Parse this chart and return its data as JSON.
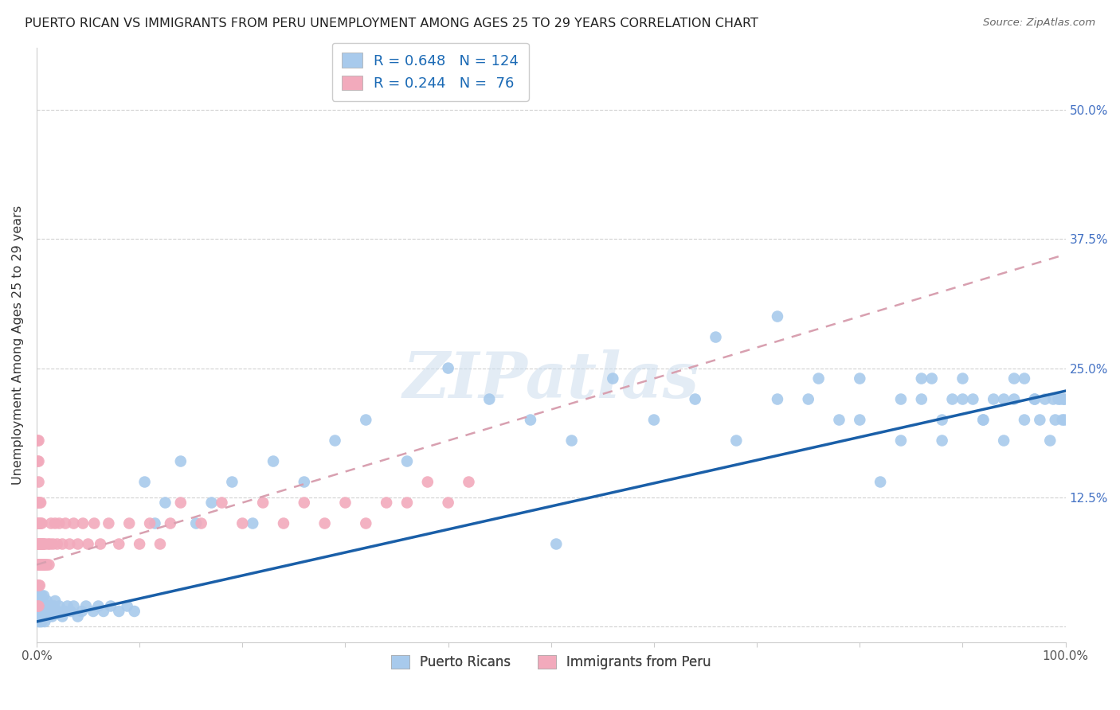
{
  "title": "PUERTO RICAN VS IMMIGRANTS FROM PERU UNEMPLOYMENT AMONG AGES 25 TO 29 YEARS CORRELATION CHART",
  "source": "Source: ZipAtlas.com",
  "ylabel": "Unemployment Among Ages 25 to 29 years",
  "watermark": "ZIPatlas",
  "blue_R": 0.648,
  "blue_N": 124,
  "pink_R": 0.244,
  "pink_N": 76,
  "blue_label": "Puerto Ricans",
  "pink_label": "Immigrants from Peru",
  "blue_color": "#A8CAEC",
  "pink_color": "#F2AABC",
  "blue_line_color": "#1A5FA8",
  "pink_line_color": "#D8A0B0",
  "xlim": [
    0.0,
    1.0
  ],
  "ylim": [
    -0.015,
    0.56
  ],
  "yticks": [
    0.0,
    0.125,
    0.25,
    0.375,
    0.5
  ],
  "yticklabels_right": [
    "",
    "12.5%",
    "25.0%",
    "37.5%",
    "50.0%"
  ],
  "blue_x": [
    0.001,
    0.001,
    0.001,
    0.001,
    0.002,
    0.002,
    0.002,
    0.002,
    0.002,
    0.002,
    0.003,
    0.003,
    0.003,
    0.003,
    0.003,
    0.004,
    0.004,
    0.004,
    0.004,
    0.005,
    0.005,
    0.005,
    0.005,
    0.006,
    0.006,
    0.006,
    0.007,
    0.007,
    0.007,
    0.008,
    0.008,
    0.009,
    0.009,
    0.01,
    0.01,
    0.011,
    0.012,
    0.013,
    0.014,
    0.015,
    0.016,
    0.017,
    0.018,
    0.02,
    0.022,
    0.025,
    0.027,
    0.03,
    0.033,
    0.036,
    0.04,
    0.044,
    0.048,
    0.055,
    0.06,
    0.065,
    0.072,
    0.08,
    0.088,
    0.095,
    0.105,
    0.115,
    0.125,
    0.14,
    0.155,
    0.17,
    0.19,
    0.21,
    0.23,
    0.26,
    0.29,
    0.32,
    0.36,
    0.4,
    0.44,
    0.48,
    0.52,
    0.56,
    0.6,
    0.64,
    0.68,
    0.72,
    0.76,
    0.8,
    0.84,
    0.86,
    0.88,
    0.9,
    0.92,
    0.94,
    0.95,
    0.96,
    0.97,
    0.975,
    0.98,
    0.985,
    0.988,
    0.99,
    0.993,
    0.995,
    0.997,
    0.998,
    0.999,
    0.999,
    0.505,
    0.66,
    0.72,
    0.75,
    0.78,
    0.8,
    0.82,
    0.84,
    0.86,
    0.87,
    0.88,
    0.89,
    0.9,
    0.91,
    0.92,
    0.93,
    0.94,
    0.95,
    0.96,
    0.97
  ],
  "blue_y": [
    0.02,
    0.01,
    0.03,
    0.015,
    0.02,
    0.01,
    0.03,
    0.015,
    0.025,
    0.005,
    0.02,
    0.01,
    0.03,
    0.015,
    0.005,
    0.02,
    0.01,
    0.025,
    0.005,
    0.015,
    0.02,
    0.03,
    0.005,
    0.01,
    0.025,
    0.015,
    0.02,
    0.01,
    0.03,
    0.015,
    0.005,
    0.02,
    0.01,
    0.015,
    0.025,
    0.02,
    0.01,
    0.015,
    0.02,
    0.01,
    0.015,
    0.02,
    0.025,
    0.015,
    0.02,
    0.01,
    0.015,
    0.02,
    0.015,
    0.02,
    0.01,
    0.015,
    0.02,
    0.015,
    0.02,
    0.015,
    0.02,
    0.015,
    0.02,
    0.015,
    0.14,
    0.1,
    0.12,
    0.16,
    0.1,
    0.12,
    0.14,
    0.1,
    0.16,
    0.14,
    0.18,
    0.2,
    0.16,
    0.25,
    0.22,
    0.2,
    0.18,
    0.24,
    0.2,
    0.22,
    0.18,
    0.22,
    0.24,
    0.2,
    0.22,
    0.24,
    0.18,
    0.22,
    0.2,
    0.22,
    0.24,
    0.2,
    0.22,
    0.2,
    0.22,
    0.18,
    0.22,
    0.2,
    0.22,
    0.22,
    0.2,
    0.22,
    0.22,
    0.2,
    0.08,
    0.28,
    0.3,
    0.22,
    0.2,
    0.24,
    0.14,
    0.18,
    0.22,
    0.24,
    0.2,
    0.22,
    0.24,
    0.22,
    0.2,
    0.22,
    0.18,
    0.22,
    0.24,
    0.22
  ],
  "pink_x": [
    0.001,
    0.001,
    0.001,
    0.001,
    0.001,
    0.001,
    0.001,
    0.001,
    0.002,
    0.002,
    0.002,
    0.002,
    0.002,
    0.002,
    0.002,
    0.002,
    0.002,
    0.003,
    0.003,
    0.003,
    0.003,
    0.003,
    0.004,
    0.004,
    0.004,
    0.004,
    0.005,
    0.005,
    0.005,
    0.006,
    0.006,
    0.007,
    0.007,
    0.008,
    0.008,
    0.009,
    0.01,
    0.011,
    0.012,
    0.013,
    0.014,
    0.016,
    0.018,
    0.02,
    0.022,
    0.025,
    0.028,
    0.032,
    0.036,
    0.04,
    0.045,
    0.05,
    0.056,
    0.062,
    0.07,
    0.08,
    0.09,
    0.1,
    0.11,
    0.12,
    0.13,
    0.14,
    0.16,
    0.18,
    0.2,
    0.22,
    0.24,
    0.26,
    0.28,
    0.3,
    0.32,
    0.34,
    0.36,
    0.38,
    0.4,
    0.42
  ],
  "pink_y": [
    0.02,
    0.04,
    0.06,
    0.08,
    0.1,
    0.12,
    0.16,
    0.18,
    0.02,
    0.04,
    0.06,
    0.08,
    0.1,
    0.12,
    0.14,
    0.16,
    0.18,
    0.04,
    0.06,
    0.08,
    0.1,
    0.12,
    0.06,
    0.08,
    0.1,
    0.12,
    0.06,
    0.08,
    0.1,
    0.06,
    0.08,
    0.06,
    0.08,
    0.06,
    0.08,
    0.06,
    0.06,
    0.08,
    0.06,
    0.08,
    0.1,
    0.08,
    0.1,
    0.08,
    0.1,
    0.08,
    0.1,
    0.08,
    0.1,
    0.08,
    0.1,
    0.08,
    0.1,
    0.08,
    0.1,
    0.08,
    0.1,
    0.08,
    0.1,
    0.08,
    0.1,
    0.12,
    0.1,
    0.12,
    0.1,
    0.12,
    0.1,
    0.12,
    0.1,
    0.12,
    0.1,
    0.12,
    0.12,
    0.14,
    0.12,
    0.14
  ],
  "blue_line_x0": 0.0,
  "blue_line_x1": 1.0,
  "blue_line_y0": 0.005,
  "blue_line_y1": 0.228,
  "pink_line_x0": 0.0,
  "pink_line_x1": 1.0,
  "pink_line_y0": 0.06,
  "pink_line_y1": 0.36
}
